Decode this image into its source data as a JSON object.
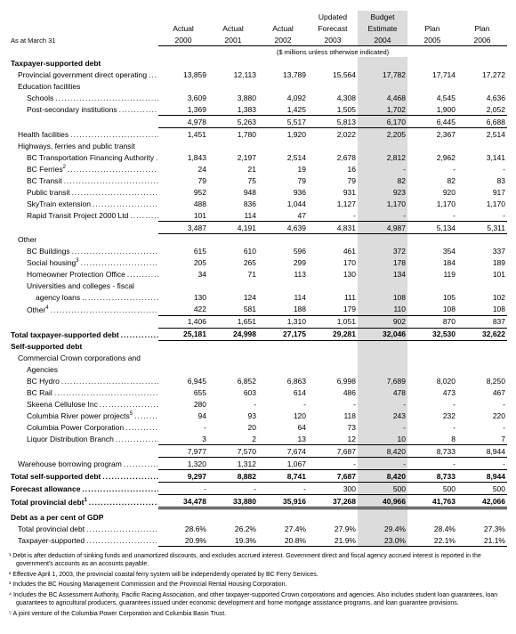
{
  "meta": {
    "asAt": "As at March 31",
    "unitsNote": "($ millions unless otherwise indicated)"
  },
  "columns": [
    {
      "l1": "",
      "l2": "Actual",
      "l3": "2000",
      "shade": false
    },
    {
      "l1": "",
      "l2": "Actual",
      "l3": "2001",
      "shade": false
    },
    {
      "l1": "",
      "l2": "Actual",
      "l3": "2002",
      "shade": false
    },
    {
      "l1": "Updated",
      "l2": "Forecast",
      "l3": "2003",
      "shade": false
    },
    {
      "l1": "Budget",
      "l2": "Estimate",
      "l3": "2004",
      "shade": true
    },
    {
      "l1": "",
      "l2": "Plan",
      "l3": "2005",
      "shade": false
    },
    {
      "l1": "",
      "l2": "Plan",
      "l3": "2006",
      "shade": false
    }
  ],
  "sections": [
    {
      "type": "head",
      "label": "Taxpayer-supported debt"
    },
    {
      "type": "row",
      "label": "Provincial government direct operating",
      "indent": 1,
      "dots": true,
      "vals": [
        "13,859",
        "12,113",
        "13,789",
        "15,564",
        "17,782",
        "17,714",
        "17,272"
      ]
    },
    {
      "type": "sub",
      "label": "Education facilities",
      "indent": 1
    },
    {
      "type": "row",
      "label": "Schools",
      "indent": 2,
      "dots": true,
      "vals": [
        "3,609",
        "3,880",
        "4,092",
        "4,308",
        "4,468",
        "4,545",
        "4,636"
      ]
    },
    {
      "type": "row",
      "label": "Post-secondary institutions",
      "indent": 2,
      "dots": true,
      "vals": [
        "1,369",
        "1,383",
        "1,425",
        "1,505",
        "1,702",
        "1,900",
        "2,052"
      ]
    },
    {
      "type": "subtotal",
      "vals": [
        "4,978",
        "5,263",
        "5,517",
        "5,813",
        "6,170",
        "6,445",
        "6,688"
      ]
    },
    {
      "type": "row",
      "label": "Health facilities",
      "indent": 1,
      "dots": true,
      "vals": [
        "1,451",
        "1,780",
        "1,920",
        "2,022",
        "2,205",
        "2,367",
        "2,514"
      ]
    },
    {
      "type": "sub",
      "label": "Highways, ferries and public transit",
      "indent": 1
    },
    {
      "type": "row",
      "label": "BC Transportation Financing Authority",
      "indent": 2,
      "dots": true,
      "vals": [
        "1,843",
        "2,197",
        "2,514",
        "2,678",
        "2,812",
        "2,962",
        "3,141"
      ]
    },
    {
      "type": "row",
      "label": "BC Ferries",
      "indent": 2,
      "dots": true,
      "vals": [
        "24",
        "21",
        "19",
        "16",
        "-",
        "-",
        "-"
      ],
      "supAfterCol": 4,
      "sup": "2"
    },
    {
      "type": "row",
      "label": "BC Transit",
      "indent": 2,
      "dots": true,
      "vals": [
        "79",
        "75",
        "79",
        "79",
        "82",
        "82",
        "83"
      ]
    },
    {
      "type": "row",
      "label": "Public transit",
      "indent": 2,
      "dots": true,
      "vals": [
        "952",
        "948",
        "936",
        "931",
        "923",
        "920",
        "917"
      ]
    },
    {
      "type": "row",
      "label": "SkyTrain  extension",
      "indent": 2,
      "dots": true,
      "vals": [
        "488",
        "836",
        "1,044",
        "1,127",
        "1,170",
        "1,170",
        "1,170"
      ]
    },
    {
      "type": "row",
      "label": "Rapid Transit Project 2000 Ltd",
      "indent": 2,
      "dots": true,
      "vals": [
        "101",
        "114",
        "47",
        "-",
        "-",
        "-",
        "-"
      ]
    },
    {
      "type": "subtotal",
      "vals": [
        "3,487",
        "4,191",
        "4,639",
        "4,831",
        "4,987",
        "5,134",
        "5,311"
      ]
    },
    {
      "type": "sub",
      "label": "Other",
      "indent": 1
    },
    {
      "type": "row",
      "label": "BC Buildings",
      "indent": 2,
      "dots": true,
      "vals": [
        "615",
        "610",
        "596",
        "461",
        "372",
        "354",
        "337"
      ]
    },
    {
      "type": "row",
      "label": "Social housing",
      "indent": 2,
      "dots": true,
      "sup": "3",
      "vals": [
        "205",
        "265",
        "299",
        "170",
        "178",
        "184",
        "189"
      ]
    },
    {
      "type": "row",
      "label": "Homeowner Protection Office",
      "indent": 2,
      "dots": true,
      "vals": [
        "34",
        "71",
        "113",
        "130",
        "134",
        "119",
        "101"
      ]
    },
    {
      "type": "row",
      "label": "Universities and colleges - fiscal",
      "indent": 2,
      "dots": false,
      "noVals": true
    },
    {
      "type": "row",
      "label": "agency loans",
      "indent": 3,
      "dots": true,
      "vals": [
        "130",
        "124",
        "114",
        "111",
        "108",
        "105",
        "102"
      ]
    },
    {
      "type": "row",
      "label": "Other",
      "indent": 2,
      "dots": true,
      "sup": "4",
      "vals": [
        "422",
        "581",
        "188",
        "179",
        "110",
        "108",
        "108"
      ]
    },
    {
      "type": "subtotal",
      "vals": [
        "1,406",
        "1,651",
        "1,310",
        "1,051",
        "902",
        "870",
        "837"
      ]
    },
    {
      "type": "total",
      "label": "Total taxpayer-supported debt",
      "dots": true,
      "vals": [
        "25,181",
        "24,998",
        "27,175",
        "29,281",
        "32,046",
        "32,530",
        "32,622"
      ],
      "bold": true
    },
    {
      "type": "head",
      "label": "Self-supported debt"
    },
    {
      "type": "sub",
      "label": "Commercial Crown corporations and",
      "indent": 1
    },
    {
      "type": "sub",
      "label": "Agencies",
      "indent": 2
    },
    {
      "type": "row",
      "label": "BC Hydro",
      "indent": 2,
      "dots": true,
      "vals": [
        "6,945",
        "6,852",
        "6,863",
        "6,998",
        "7,689",
        "8,020",
        "8,250"
      ]
    },
    {
      "type": "row",
      "label": "BC Rail",
      "indent": 2,
      "dots": true,
      "vals": [
        "655",
        "603",
        "614",
        "486",
        "478",
        "473",
        "467"
      ]
    },
    {
      "type": "row",
      "label": "Skeena Cellulose Inc",
      "indent": 2,
      "dots": true,
      "vals": [
        "280",
        "-",
        "-",
        "-",
        "-",
        "-",
        "-"
      ]
    },
    {
      "type": "row",
      "label": "Columbia River power projects",
      "indent": 2,
      "dots": true,
      "sup": "5",
      "vals": [
        "94",
        "93",
        "120",
        "118",
        "243",
        "232",
        "220"
      ]
    },
    {
      "type": "row",
      "label": "Columbia Power Corporation",
      "indent": 2,
      "dots": true,
      "vals": [
        "-",
        "20",
        "64",
        "73",
        "-",
        "-",
        "-"
      ]
    },
    {
      "type": "row",
      "label": "Liquor Distribution Branch",
      "indent": 2,
      "dots": true,
      "vals": [
        "3",
        "2",
        "13",
        "12",
        "10",
        "8",
        "7"
      ]
    },
    {
      "type": "subtotal",
      "vals": [
        "7,977",
        "7,570",
        "7,674",
        "7,687",
        "8,420",
        "8,733",
        "8,944"
      ]
    },
    {
      "type": "row",
      "label": "Warehouse borrowing program",
      "indent": 1,
      "dots": true,
      "vals": [
        "1,320",
        "1,312",
        "1,067",
        "-",
        "-",
        "-",
        "-"
      ],
      "heavy": true
    },
    {
      "type": "total",
      "label": "Total self-supported debt",
      "dots": true,
      "vals": [
        "9,297",
        "8,882",
        "8,741",
        "7,687",
        "8,420",
        "8,733",
        "8,944"
      ],
      "bold": true
    },
    {
      "type": "row",
      "label": "Forecast allowance",
      "indent": 0,
      "dots": true,
      "bold": true,
      "vals": [
        "-",
        "-",
        "-",
        "300",
        "500",
        "500",
        "500"
      ],
      "heavy": true
    },
    {
      "type": "grand",
      "label": "Total provincial debt",
      "dots": true,
      "sup": "1",
      "vals": [
        "34,478",
        "33,880",
        "35,916",
        "37,268",
        "40,966",
        "41,763",
        "42,066"
      ],
      "bold": true
    },
    {
      "type": "head",
      "label": "Debt as a per cent of GDP"
    },
    {
      "type": "row",
      "label": "Total provincial debt",
      "indent": 1,
      "dots": true,
      "vals": [
        "28.6%",
        "26.2%",
        "27.4%",
        "27.9%",
        "29.4%",
        "28.4%",
        "27.3%"
      ]
    },
    {
      "type": "row",
      "label": "Taxpayer-supported",
      "indent": 1,
      "dots": true,
      "vals": [
        "20.9%",
        "19.3%",
        "20.8%",
        "21.9%",
        "23.0%",
        "22.1%",
        "21.1%"
      ],
      "endline": true
    }
  ],
  "footnotes": [
    "¹  Debt is after deduction of sinking funds and unamortized discounts, and excludes accrued interest.  Government direct and fiscal agency accrued interest is reported in the government's accounts as an accounts payable.",
    "²  Effective April 1, 2003, the provincial coastal ferry system will be independently operated by BC Ferry Services.",
    "³  Includes the BC Housing Management Commission and the Provincial Rental Housing Corporation.",
    "⁴  Includes the BC Assessment Authority, Pacific Racing Association, and other taxpayer-supported Crown corporations and agencies.  Also includes student loan guarantees, loan guarantees to agricultural producers, guarantees issued under economic development and home mortgage assistance programs, and loan guarantee provisions.",
    "⁵  A joint venture of the Columbia Power Corporation and Columbia Basin Trust."
  ]
}
